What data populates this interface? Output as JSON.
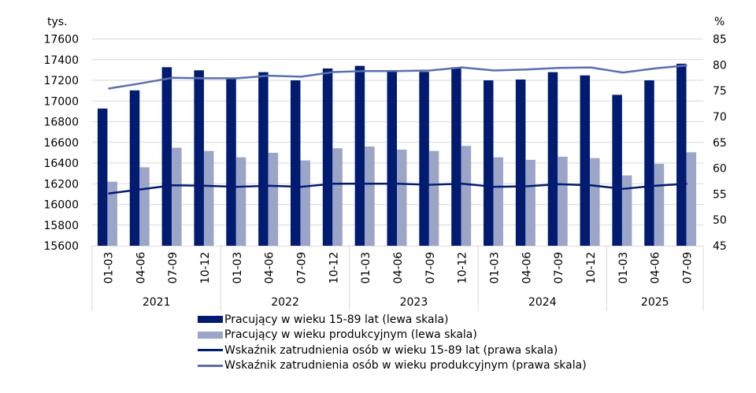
{
  "chart_data": {
    "type": "bar+line",
    "left_axis": {
      "unit_label": "tys.",
      "range": [
        15600,
        17600
      ],
      "ticks": [
        15600,
        15800,
        16000,
        16200,
        16400,
        16600,
        16800,
        17000,
        17200,
        17400,
        17600
      ]
    },
    "right_axis": {
      "unit_label": "%",
      "range": [
        45,
        85
      ],
      "ticks": [
        45,
        50,
        55,
        60,
        65,
        70,
        75,
        80,
        85
      ]
    },
    "grid": true,
    "legend_placement": "bottom",
    "years": [
      "2021",
      "2022",
      "2023",
      "2024",
      "2025"
    ],
    "categories": [
      {
        "year": "2021",
        "q": "01-03"
      },
      {
        "year": "2021",
        "q": "04-06"
      },
      {
        "year": "2021",
        "q": "07-09"
      },
      {
        "year": "2021",
        "q": "10-12"
      },
      {
        "year": "2022",
        "q": "01-03"
      },
      {
        "year": "2022",
        "q": "04-06"
      },
      {
        "year": "2022",
        "q": "07-09"
      },
      {
        "year": "2022",
        "q": "10-12"
      },
      {
        "year": "2023",
        "q": "01-03"
      },
      {
        "year": "2023",
        "q": "04-06"
      },
      {
        "year": "2023",
        "q": "07-09"
      },
      {
        "year": "2023",
        "q": "10-12"
      },
      {
        "year": "2024",
        "q": "01-03"
      },
      {
        "year": "2024",
        "q": "04-06"
      },
      {
        "year": "2024",
        "q": "07-09"
      },
      {
        "year": "2024",
        "q": "10-12"
      },
      {
        "year": "2025",
        "q": "01-03"
      },
      {
        "year": "2025",
        "q": "04-06"
      },
      {
        "year": "2025",
        "q": "07-09"
      }
    ],
    "series": [
      {
        "name": "Pracujący w wieku 15-89 lat (lewa skala)",
        "kind": "bar",
        "axis": "left",
        "color": "#001B70",
        "values": [
          16927,
          17103,
          17327,
          17297,
          17213,
          17279,
          17200,
          17315,
          17340,
          17282,
          17282,
          17327,
          17200,
          17208,
          17279,
          17248,
          17060,
          17200,
          17361
        ]
      },
      {
        "name": "Pracujący w wieku produkcyjnym (lewa skala)",
        "kind": "bar",
        "axis": "left",
        "color": "#9BA5C8",
        "values": [
          16219,
          16359,
          16548,
          16517,
          16456,
          16499,
          16425,
          16543,
          16560,
          16530,
          16517,
          16566,
          16456,
          16431,
          16461,
          16448,
          16280,
          16392,
          16504
        ]
      },
      {
        "name": "Wskaźnik zatrudnienia osób w wieku 15-89 lat (prawa skala)",
        "kind": "line",
        "axis": "right",
        "color": "#001B70",
        "values": [
          55.1,
          55.9,
          56.7,
          56.6,
          56.4,
          56.6,
          56.4,
          57.0,
          57.0,
          57.0,
          56.8,
          57.0,
          56.4,
          56.5,
          56.9,
          56.7,
          56.0,
          56.6,
          57.0
        ]
      },
      {
        "name": "Wskaźnik zatrudnienia osób w wieku produkcyjnym (prawa skala)",
        "kind": "line",
        "axis": "right",
        "color": "#5B6FAE",
        "values": [
          75.4,
          76.4,
          77.5,
          77.4,
          77.4,
          77.9,
          77.7,
          78.6,
          78.8,
          78.8,
          78.9,
          79.5,
          78.9,
          79.1,
          79.4,
          79.5,
          78.5,
          79.3,
          79.9
        ]
      }
    ]
  }
}
